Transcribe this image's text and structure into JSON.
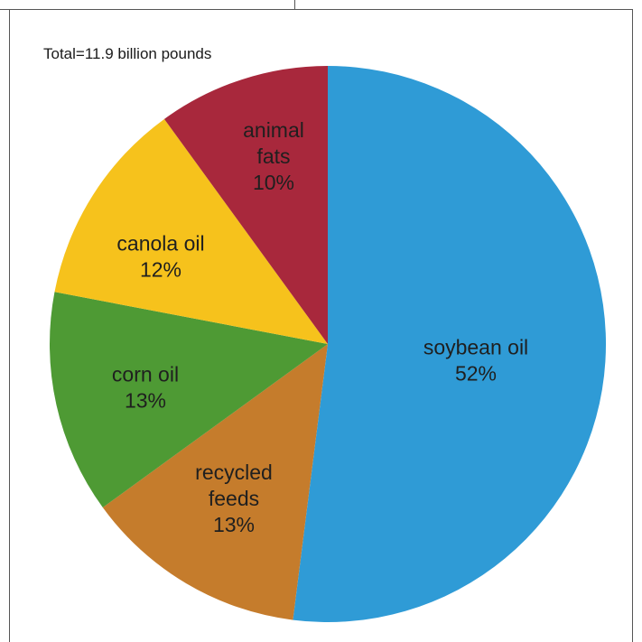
{
  "chart_data": {
    "type": "pie",
    "title": "Total=11.9 billion pounds",
    "slices": [
      {
        "name": "soybean oil",
        "label_lines": [
          "soybean oil",
          "52%"
        ],
        "value": 52,
        "color": "#2f9bd6"
      },
      {
        "name": "recycled feeds",
        "label_lines": [
          "recycled",
          "feeds",
          "13%"
        ],
        "value": 13,
        "color": "#c57c2c"
      },
      {
        "name": "corn oil",
        "label_lines": [
          "corn oil",
          "13%"
        ],
        "value": 13,
        "color": "#4e9a34"
      },
      {
        "name": "canola oil",
        "label_lines": [
          "canola oil",
          "12%"
        ],
        "value": 12,
        "color": "#f6c21c"
      },
      {
        "name": "animal fats",
        "label_lines": [
          "animal",
          "fats",
          "10%"
        ],
        "value": 10,
        "color": "#a8283c"
      }
    ]
  }
}
